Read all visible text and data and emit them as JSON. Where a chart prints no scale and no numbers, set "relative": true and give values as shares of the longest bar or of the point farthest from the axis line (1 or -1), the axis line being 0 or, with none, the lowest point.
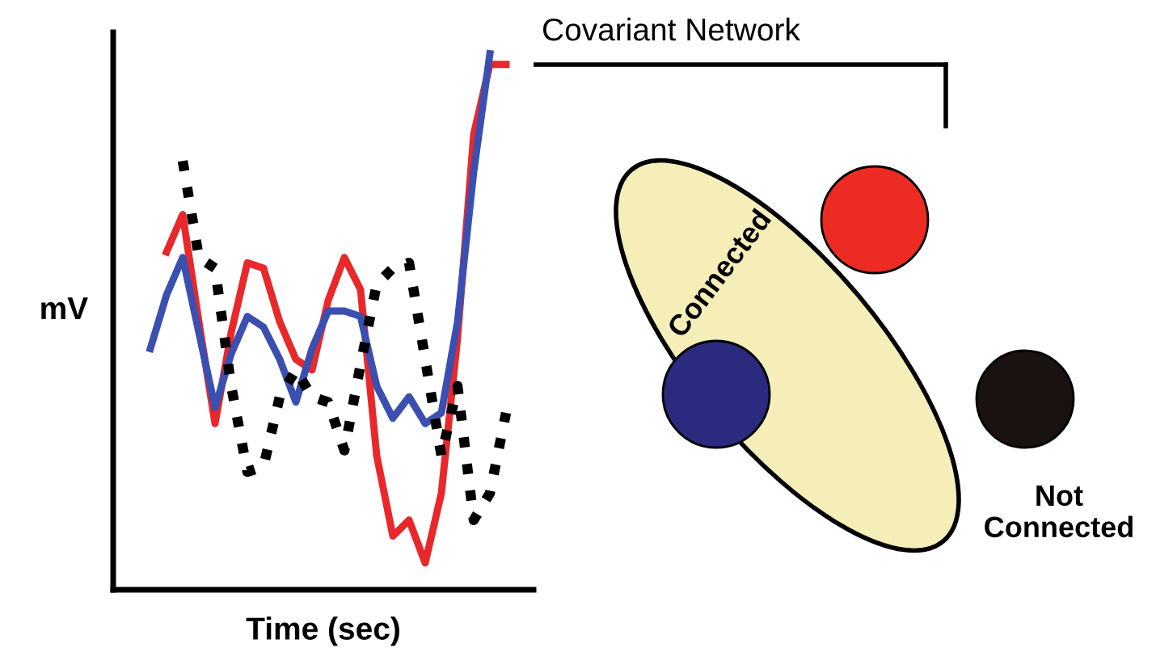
{
  "chart_data": {
    "type": "line",
    "relative": true,
    "xlabel": "Time (sec)",
    "ylabel": "mV",
    "categories": [
      null,
      null,
      null,
      null,
      null,
      null,
      null,
      null,
      null,
      null,
      null,
      null,
      null,
      null,
      null,
      null,
      null,
      null,
      null,
      null,
      null,
      null,
      null
    ],
    "series": [
      {
        "color": "#e8282b",
        "line_style": "solid",
        "values": [
          null,
          0.63,
          0.7,
          0.5,
          0.31,
          0.48,
          0.61,
          0.6,
          0.5,
          0.43,
          0.41,
          0.54,
          0.62,
          0.56,
          0.25,
          0.1,
          0.13,
          0.05,
          0.18,
          0.47,
          0.85,
          0.98,
          0.98
        ]
      },
      {
        "color": "#3b4fb0",
        "line_style": "solid",
        "values": [
          0.45,
          0.55,
          0.62,
          0.48,
          0.34,
          0.44,
          0.51,
          0.49,
          0.43,
          0.35,
          0.45,
          0.52,
          0.52,
          0.51,
          0.38,
          0.32,
          0.36,
          0.31,
          0.33,
          0.5,
          0.78,
          1.0,
          null
        ]
      },
      {
        "color": "#000000",
        "line_style": "dotted",
        "values": [
          null,
          null,
          0.8,
          0.62,
          0.6,
          0.38,
          0.22,
          0.23,
          0.36,
          0.41,
          0.36,
          0.35,
          0.26,
          0.42,
          0.57,
          0.6,
          0.61,
          0.43,
          0.25,
          0.38,
          0.13,
          0.18,
          0.33
        ]
      }
    ],
    "legend": false,
    "tick_labels": false,
    "annotations": [
      "Covariant Network",
      "Connected",
      "Not\nConnected"
    ]
  }
}
